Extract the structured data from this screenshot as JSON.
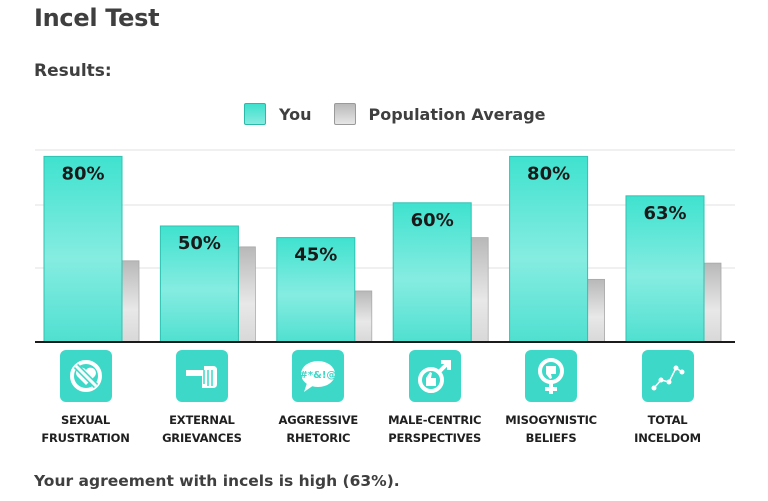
{
  "page": {
    "title": "Incel Test",
    "subtitle": "Results:",
    "footer": "Your agreement with incels is high (63%)."
  },
  "legend": {
    "you": "You",
    "average": "Population Average"
  },
  "colors": {
    "you_bar": "#3ee0cd",
    "average_bar": "#c9c9c9",
    "icon_bg": "#3dd8c8"
  },
  "categories": [
    {
      "label_line1": "SEXUAL",
      "label_line2": "FRUSTRATION",
      "icon": "no-heart-icon"
    },
    {
      "label_line1": "EXTERNAL",
      "label_line2": "GRIEVANCES",
      "icon": "pointing-hand-icon"
    },
    {
      "label_line1": "AGGRESSIVE",
      "label_line2": "RHETORIC",
      "icon": "swearing-bubble-icon"
    },
    {
      "label_line1": "MALE-CENTRIC",
      "label_line2": "PERSPECTIVES",
      "icon": "male-thumbs-up-icon"
    },
    {
      "label_line1": "MISOGYNISTIC",
      "label_line2": "BELIEFS",
      "icon": "female-thumbs-down-icon"
    },
    {
      "label_line1": "TOTAL",
      "label_line2": "INCELDOM",
      "icon": "line-graph-icon"
    }
  ],
  "chart_data": {
    "type": "bar",
    "categories": [
      "SEXUAL FRUSTRATION",
      "EXTERNAL GRIEVANCES",
      "AGGRESSIVE RHETORIC",
      "MALE-CENTRIC PERSPECTIVES",
      "MISOGYNISTIC BELIEFS",
      "TOTAL INCELDOM"
    ],
    "series": [
      {
        "name": "You",
        "values": [
          80,
          50,
          45,
          60,
          80,
          63
        ],
        "labels": [
          "80%",
          "50%",
          "45%",
          "60%",
          "80%",
          "63%"
        ]
      },
      {
        "name": "Population Average",
        "values": [
          35,
          41,
          22,
          45,
          27,
          34
        ]
      }
    ],
    "ylim": [
      0,
      100
    ],
    "grid": true,
    "legend_position": "top-center"
  }
}
